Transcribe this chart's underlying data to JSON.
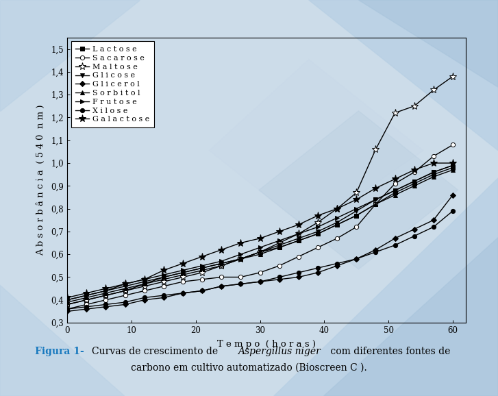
{
  "xlabel": "T e m p o  ( h o r a s )",
  "ylabel": "A b s o r b â n c i a  ( 5 4 0  n m )",
  "xlim": [
    0,
    62
  ],
  "ylim": [
    0.3,
    1.55
  ],
  "yticks": [
    0.3,
    0.4,
    0.5,
    0.6,
    0.7,
    0.8,
    0.9,
    1.0,
    1.1,
    1.2,
    1.3,
    1.4,
    1.5
  ],
  "xticks": [
    0,
    10,
    20,
    30,
    40,
    50,
    60
  ],
  "series": {
    "Lactose": {
      "x": [
        0,
        3,
        6,
        9,
        12,
        15,
        18,
        21,
        24,
        27,
        30,
        33,
        36,
        39,
        42,
        45,
        48,
        51,
        54,
        57,
        60
      ],
      "y": [
        0.38,
        0.4,
        0.42,
        0.44,
        0.47,
        0.49,
        0.51,
        0.53,
        0.55,
        0.58,
        0.61,
        0.63,
        0.66,
        0.69,
        0.73,
        0.77,
        0.82,
        0.87,
        0.91,
        0.95,
        0.98
      ],
      "marker": "s",
      "fillstyle": "full",
      "ms": 4.5
    },
    "Sacarose": {
      "x": [
        0,
        3,
        6,
        9,
        12,
        15,
        18,
        21,
        24,
        27,
        30,
        33,
        36,
        39,
        42,
        45,
        48,
        51,
        54,
        57,
        60
      ],
      "y": [
        0.36,
        0.38,
        0.4,
        0.42,
        0.44,
        0.46,
        0.48,
        0.49,
        0.5,
        0.5,
        0.52,
        0.55,
        0.59,
        0.63,
        0.67,
        0.72,
        0.82,
        0.91,
        0.96,
        1.03,
        1.08
      ],
      "marker": "o",
      "fillstyle": "none",
      "ms": 4.5
    },
    "Maltose": {
      "x": [
        0,
        3,
        6,
        9,
        12,
        15,
        18,
        21,
        24,
        27,
        30,
        33,
        36,
        39,
        42,
        45,
        48,
        51,
        54,
        57,
        60
      ],
      "y": [
        0.38,
        0.4,
        0.42,
        0.44,
        0.46,
        0.48,
        0.5,
        0.52,
        0.55,
        0.58,
        0.61,
        0.65,
        0.69,
        0.74,
        0.8,
        0.87,
        1.06,
        1.22,
        1.25,
        1.32,
        1.38
      ],
      "marker": "*",
      "fillstyle": "none",
      "ms": 8
    },
    "Glicose": {
      "x": [
        0,
        3,
        6,
        9,
        12,
        15,
        18,
        21,
        24,
        27,
        30,
        33,
        36,
        39,
        42,
        45,
        48,
        51,
        54,
        57,
        60
      ],
      "y": [
        0.4,
        0.42,
        0.44,
        0.46,
        0.48,
        0.5,
        0.52,
        0.54,
        0.56,
        0.58,
        0.61,
        0.64,
        0.67,
        0.7,
        0.74,
        0.79,
        0.84,
        0.88,
        0.92,
        0.96,
        0.99
      ],
      "marker": "v",
      "fillstyle": "full",
      "ms": 5
    },
    "Glicerol": {
      "x": [
        0,
        3,
        6,
        9,
        12,
        15,
        18,
        21,
        24,
        27,
        30,
        33,
        36,
        39,
        42,
        45,
        48,
        51,
        54,
        57,
        60
      ],
      "y": [
        0.35,
        0.36,
        0.37,
        0.38,
        0.4,
        0.41,
        0.43,
        0.44,
        0.46,
        0.47,
        0.48,
        0.49,
        0.5,
        0.52,
        0.55,
        0.58,
        0.62,
        0.67,
        0.71,
        0.75,
        0.86
      ],
      "marker": "D",
      "fillstyle": "full",
      "ms": 4
    },
    "Sorbitol": {
      "x": [
        0,
        3,
        6,
        9,
        12,
        15,
        18,
        21,
        24,
        27,
        30,
        33,
        36,
        39,
        42,
        45,
        48,
        51,
        54,
        57,
        60
      ],
      "y": [
        0.39,
        0.41,
        0.43,
        0.45,
        0.47,
        0.5,
        0.52,
        0.54,
        0.56,
        0.58,
        0.6,
        0.63,
        0.66,
        0.69,
        0.73,
        0.77,
        0.82,
        0.86,
        0.9,
        0.94,
        0.97
      ],
      "marker": "^",
      "fillstyle": "full",
      "ms": 5
    },
    "Frutose": {
      "x": [
        0,
        3,
        6,
        9,
        12,
        15,
        18,
        21,
        24,
        27,
        30,
        33,
        36,
        39,
        42,
        45,
        48,
        51,
        54,
        57,
        60
      ],
      "y": [
        0.4,
        0.42,
        0.44,
        0.47,
        0.49,
        0.51,
        0.53,
        0.55,
        0.57,
        0.6,
        0.63,
        0.66,
        0.69,
        0.72,
        0.76,
        0.8,
        0.84,
        0.88,
        0.92,
        0.96,
        0.99
      ],
      "marker": ">",
      "fillstyle": "full",
      "ms": 5
    },
    "Xilose": {
      "x": [
        0,
        3,
        6,
        9,
        12,
        15,
        18,
        21,
        24,
        27,
        30,
        33,
        36,
        39,
        42,
        45,
        48,
        51,
        54,
        57,
        60
      ],
      "y": [
        0.36,
        0.37,
        0.38,
        0.39,
        0.41,
        0.42,
        0.43,
        0.44,
        0.46,
        0.47,
        0.48,
        0.5,
        0.52,
        0.54,
        0.56,
        0.58,
        0.61,
        0.64,
        0.68,
        0.72,
        0.79
      ],
      "marker": "o",
      "fillstyle": "full",
      "ms": 4.5
    },
    "Galactose": {
      "x": [
        0,
        3,
        6,
        9,
        12,
        15,
        18,
        21,
        24,
        27,
        30,
        33,
        36,
        39,
        42,
        45,
        48,
        51,
        54,
        57,
        60
      ],
      "y": [
        0.41,
        0.43,
        0.45,
        0.47,
        0.49,
        0.53,
        0.56,
        0.59,
        0.62,
        0.65,
        0.67,
        0.7,
        0.73,
        0.77,
        0.8,
        0.84,
        0.89,
        0.93,
        0.97,
        1.0,
        1.0
      ],
      "marker": "*",
      "fillstyle": "full",
      "ms": 8
    }
  },
  "legend_labels": [
    "L a c t o s e",
    "S a c a r o s e",
    "M a l t o s e",
    "G l i c o s e",
    "G l i c e r o l",
    "S o r b i t o l",
    "F r u t o s e",
    "X i l o s e",
    "G a l a c t o s e"
  ],
  "bg_color": "#ccdce9",
  "linewidth": 1.0,
  "legend_fontsize": 8,
  "axis_fontsize": 9.5,
  "tick_fontsize": 8.5
}
